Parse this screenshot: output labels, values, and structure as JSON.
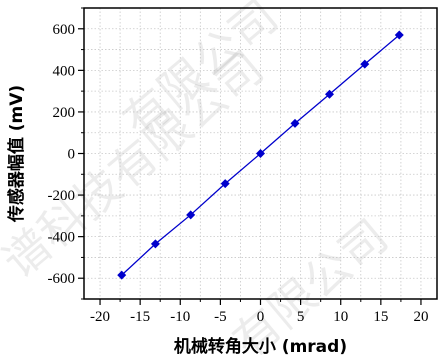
{
  "chart_data": {
    "type": "scatter",
    "title": "",
    "xlabel": "机械转角大小 (mrad)",
    "ylabel": "传感器幅值 (mV)",
    "xlim": [
      -22,
      22
    ],
    "ylim": [
      -700,
      700
    ],
    "xticks": [
      -20,
      -15,
      -10,
      -5,
      0,
      5,
      10,
      15,
      20
    ],
    "yticks": [
      -600,
      -400,
      -200,
      0,
      200,
      400,
      600
    ],
    "grid": true,
    "legend": "none",
    "series": [
      {
        "color": "#0000cc",
        "marker": "diamond",
        "line": "solid",
        "x": [
          -17.3,
          -13.1,
          -8.7,
          -4.4,
          0,
          4.3,
          8.6,
          13.0,
          17.3
        ],
        "y": [
          -585,
          -435,
          -295,
          -145,
          0,
          145,
          285,
          430,
          570
        ]
      }
    ]
  },
  "watermark": {
    "lines": [
      "有限公司",
      "谱科技有限公司",
      "有限公司"
    ]
  }
}
